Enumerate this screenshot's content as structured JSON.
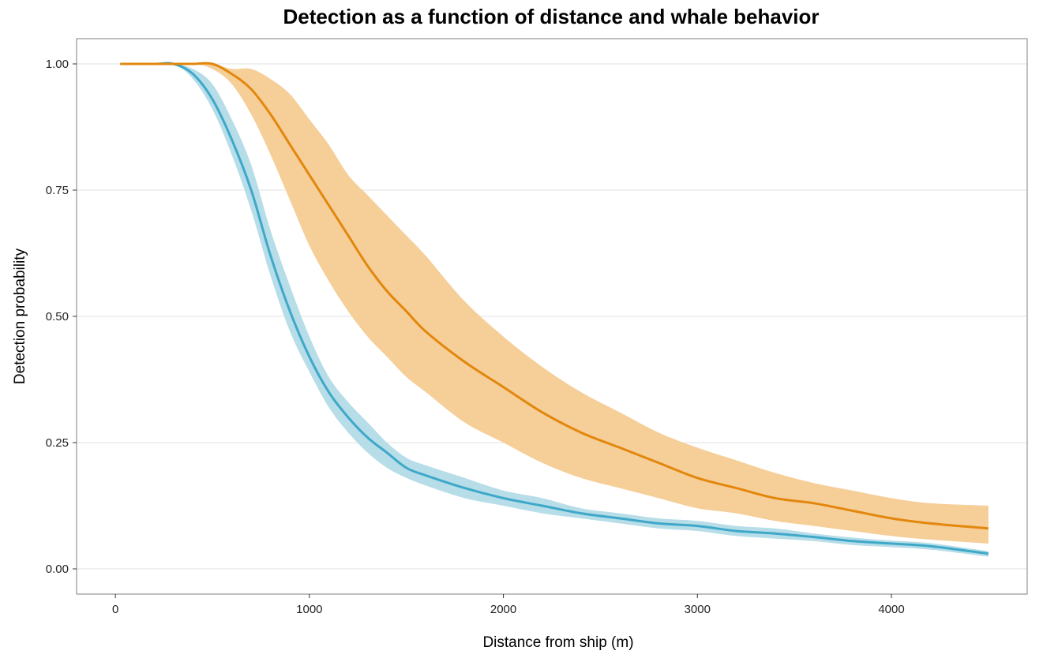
{
  "chart_data": {
    "type": "line",
    "title": "Detection as a function of distance and whale behavior",
    "xlabel": "Distance from ship (m)",
    "ylabel": "Detection probability",
    "xlim": [
      -200,
      4700
    ],
    "ylim": [
      -0.05,
      1.05
    ],
    "x_ticks": [
      0,
      1000,
      2000,
      3000,
      4000
    ],
    "x_tick_labels": [
      "0",
      "1000",
      "2000",
      "3000",
      "4000"
    ],
    "y_ticks": [
      0.0,
      0.25,
      0.5,
      0.75,
      1.0
    ],
    "y_tick_labels": [
      "0.00",
      "0.25",
      "0.50",
      "0.75",
      "1.00"
    ],
    "grid": "horizontal",
    "legend": "none",
    "x": [
      25,
      200,
      300,
      400,
      500,
      600,
      700,
      800,
      900,
      1000,
      1100,
      1200,
      1300,
      1400,
      1500,
      1600,
      1800,
      2000,
      2200,
      2400,
      2600,
      2800,
      3000,
      3200,
      3400,
      3600,
      3800,
      4000,
      4200,
      4500
    ],
    "series": [
      {
        "color": "#3fa8c9",
        "band_color": "#b6dde8",
        "y": [
          1.0,
          1.0,
          1.0,
          0.98,
          0.93,
          0.85,
          0.75,
          0.62,
          0.51,
          0.42,
          0.35,
          0.3,
          0.26,
          0.23,
          0.2,
          0.185,
          0.16,
          0.14,
          0.125,
          0.11,
          0.1,
          0.09,
          0.085,
          0.075,
          0.07,
          0.063,
          0.055,
          0.05,
          0.045,
          0.03
        ],
        "lower": [
          1.0,
          1.0,
          1.0,
          0.97,
          0.91,
          0.82,
          0.71,
          0.58,
          0.47,
          0.39,
          0.32,
          0.27,
          0.23,
          0.2,
          0.18,
          0.165,
          0.14,
          0.125,
          0.11,
          0.1,
          0.09,
          0.08,
          0.075,
          0.065,
          0.06,
          0.055,
          0.047,
          0.043,
          0.038,
          0.024
        ],
        "upper": [
          1.0,
          1.0,
          1.0,
          0.99,
          0.96,
          0.89,
          0.8,
          0.67,
          0.56,
          0.46,
          0.38,
          0.33,
          0.29,
          0.25,
          0.22,
          0.205,
          0.18,
          0.155,
          0.14,
          0.12,
          0.11,
          0.1,
          0.095,
          0.085,
          0.08,
          0.07,
          0.062,
          0.056,
          0.051,
          0.035
        ]
      },
      {
        "color": "#e3870c",
        "band_color": "#f5ce98",
        "y": [
          1.0,
          1.0,
          1.0,
          1.0,
          1.0,
          0.98,
          0.95,
          0.9,
          0.84,
          0.78,
          0.72,
          0.66,
          0.6,
          0.55,
          0.51,
          0.47,
          0.41,
          0.36,
          0.31,
          0.27,
          0.24,
          0.21,
          0.18,
          0.16,
          0.14,
          0.13,
          0.115,
          0.1,
          0.09,
          0.08
        ],
        "lower": [
          1.0,
          1.0,
          1.0,
          1.0,
          0.99,
          0.96,
          0.9,
          0.82,
          0.73,
          0.64,
          0.57,
          0.51,
          0.46,
          0.42,
          0.38,
          0.35,
          0.29,
          0.25,
          0.21,
          0.18,
          0.16,
          0.14,
          0.12,
          0.11,
          0.095,
          0.085,
          0.075,
          0.065,
          0.058,
          0.05
        ],
        "upper": [
          1.0,
          1.0,
          1.0,
          1.0,
          1.0,
          0.99,
          0.99,
          0.97,
          0.94,
          0.89,
          0.84,
          0.78,
          0.74,
          0.7,
          0.66,
          0.62,
          0.53,
          0.46,
          0.4,
          0.35,
          0.31,
          0.27,
          0.24,
          0.215,
          0.19,
          0.17,
          0.155,
          0.14,
          0.13,
          0.125
        ]
      }
    ]
  }
}
